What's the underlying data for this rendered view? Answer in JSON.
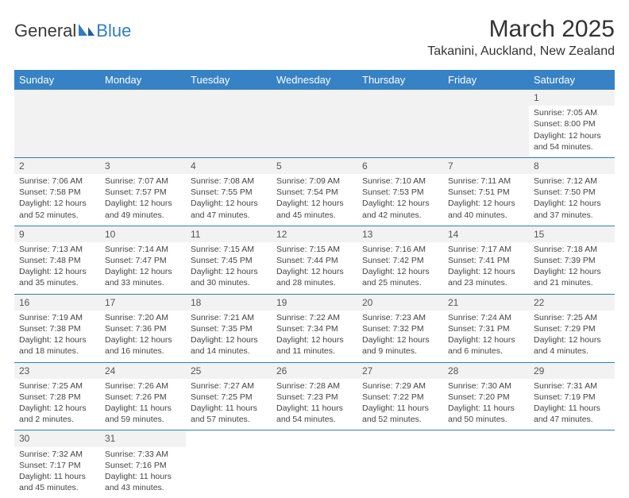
{
  "brand": {
    "part1": "General",
    "part2": "Blue"
  },
  "title": "March 2025",
  "location": "Takanini, Auckland, New Zealand",
  "colors": {
    "header_bg": "#3782c4",
    "header_text": "#ffffff",
    "rule": "#2f7ec0",
    "daystrip_bg": "#f2f2f2",
    "brand_blue": "#2f7ec0",
    "text": "#333333"
  },
  "weekdays": [
    "Sunday",
    "Monday",
    "Tuesday",
    "Wednesday",
    "Thursday",
    "Friday",
    "Saturday"
  ],
  "leading_blanks": 6,
  "days": [
    {
      "n": "1",
      "sunrise": "Sunrise: 7:05 AM",
      "sunset": "Sunset: 8:00 PM",
      "day1": "Daylight: 12 hours",
      "day2": "and 54 minutes."
    },
    {
      "n": "2",
      "sunrise": "Sunrise: 7:06 AM",
      "sunset": "Sunset: 7:58 PM",
      "day1": "Daylight: 12 hours",
      "day2": "and 52 minutes."
    },
    {
      "n": "3",
      "sunrise": "Sunrise: 7:07 AM",
      "sunset": "Sunset: 7:57 PM",
      "day1": "Daylight: 12 hours",
      "day2": "and 49 minutes."
    },
    {
      "n": "4",
      "sunrise": "Sunrise: 7:08 AM",
      "sunset": "Sunset: 7:55 PM",
      "day1": "Daylight: 12 hours",
      "day2": "and 47 minutes."
    },
    {
      "n": "5",
      "sunrise": "Sunrise: 7:09 AM",
      "sunset": "Sunset: 7:54 PM",
      "day1": "Daylight: 12 hours",
      "day2": "and 45 minutes."
    },
    {
      "n": "6",
      "sunrise": "Sunrise: 7:10 AM",
      "sunset": "Sunset: 7:53 PM",
      "day1": "Daylight: 12 hours",
      "day2": "and 42 minutes."
    },
    {
      "n": "7",
      "sunrise": "Sunrise: 7:11 AM",
      "sunset": "Sunset: 7:51 PM",
      "day1": "Daylight: 12 hours",
      "day2": "and 40 minutes."
    },
    {
      "n": "8",
      "sunrise": "Sunrise: 7:12 AM",
      "sunset": "Sunset: 7:50 PM",
      "day1": "Daylight: 12 hours",
      "day2": "and 37 minutes."
    },
    {
      "n": "9",
      "sunrise": "Sunrise: 7:13 AM",
      "sunset": "Sunset: 7:48 PM",
      "day1": "Daylight: 12 hours",
      "day2": "and 35 minutes."
    },
    {
      "n": "10",
      "sunrise": "Sunrise: 7:14 AM",
      "sunset": "Sunset: 7:47 PM",
      "day1": "Daylight: 12 hours",
      "day2": "and 33 minutes."
    },
    {
      "n": "11",
      "sunrise": "Sunrise: 7:15 AM",
      "sunset": "Sunset: 7:45 PM",
      "day1": "Daylight: 12 hours",
      "day2": "and 30 minutes."
    },
    {
      "n": "12",
      "sunrise": "Sunrise: 7:15 AM",
      "sunset": "Sunset: 7:44 PM",
      "day1": "Daylight: 12 hours",
      "day2": "and 28 minutes."
    },
    {
      "n": "13",
      "sunrise": "Sunrise: 7:16 AM",
      "sunset": "Sunset: 7:42 PM",
      "day1": "Daylight: 12 hours",
      "day2": "and 25 minutes."
    },
    {
      "n": "14",
      "sunrise": "Sunrise: 7:17 AM",
      "sunset": "Sunset: 7:41 PM",
      "day1": "Daylight: 12 hours",
      "day2": "and 23 minutes."
    },
    {
      "n": "15",
      "sunrise": "Sunrise: 7:18 AM",
      "sunset": "Sunset: 7:39 PM",
      "day1": "Daylight: 12 hours",
      "day2": "and 21 minutes."
    },
    {
      "n": "16",
      "sunrise": "Sunrise: 7:19 AM",
      "sunset": "Sunset: 7:38 PM",
      "day1": "Daylight: 12 hours",
      "day2": "and 18 minutes."
    },
    {
      "n": "17",
      "sunrise": "Sunrise: 7:20 AM",
      "sunset": "Sunset: 7:36 PM",
      "day1": "Daylight: 12 hours",
      "day2": "and 16 minutes."
    },
    {
      "n": "18",
      "sunrise": "Sunrise: 7:21 AM",
      "sunset": "Sunset: 7:35 PM",
      "day1": "Daylight: 12 hours",
      "day2": "and 14 minutes."
    },
    {
      "n": "19",
      "sunrise": "Sunrise: 7:22 AM",
      "sunset": "Sunset: 7:34 PM",
      "day1": "Daylight: 12 hours",
      "day2": "and 11 minutes."
    },
    {
      "n": "20",
      "sunrise": "Sunrise: 7:23 AM",
      "sunset": "Sunset: 7:32 PM",
      "day1": "Daylight: 12 hours",
      "day2": "and 9 minutes."
    },
    {
      "n": "21",
      "sunrise": "Sunrise: 7:24 AM",
      "sunset": "Sunset: 7:31 PM",
      "day1": "Daylight: 12 hours",
      "day2": "and 6 minutes."
    },
    {
      "n": "22",
      "sunrise": "Sunrise: 7:25 AM",
      "sunset": "Sunset: 7:29 PM",
      "day1": "Daylight: 12 hours",
      "day2": "and 4 minutes."
    },
    {
      "n": "23",
      "sunrise": "Sunrise: 7:25 AM",
      "sunset": "Sunset: 7:28 PM",
      "day1": "Daylight: 12 hours",
      "day2": "and 2 minutes."
    },
    {
      "n": "24",
      "sunrise": "Sunrise: 7:26 AM",
      "sunset": "Sunset: 7:26 PM",
      "day1": "Daylight: 11 hours",
      "day2": "and 59 minutes."
    },
    {
      "n": "25",
      "sunrise": "Sunrise: 7:27 AM",
      "sunset": "Sunset: 7:25 PM",
      "day1": "Daylight: 11 hours",
      "day2": "and 57 minutes."
    },
    {
      "n": "26",
      "sunrise": "Sunrise: 7:28 AM",
      "sunset": "Sunset: 7:23 PM",
      "day1": "Daylight: 11 hours",
      "day2": "and 54 minutes."
    },
    {
      "n": "27",
      "sunrise": "Sunrise: 7:29 AM",
      "sunset": "Sunset: 7:22 PM",
      "day1": "Daylight: 11 hours",
      "day2": "and 52 minutes."
    },
    {
      "n": "28",
      "sunrise": "Sunrise: 7:30 AM",
      "sunset": "Sunset: 7:20 PM",
      "day1": "Daylight: 11 hours",
      "day2": "and 50 minutes."
    },
    {
      "n": "29",
      "sunrise": "Sunrise: 7:31 AM",
      "sunset": "Sunset: 7:19 PM",
      "day1": "Daylight: 11 hours",
      "day2": "and 47 minutes."
    },
    {
      "n": "30",
      "sunrise": "Sunrise: 7:32 AM",
      "sunset": "Sunset: 7:17 PM",
      "day1": "Daylight: 11 hours",
      "day2": "and 45 minutes."
    },
    {
      "n": "31",
      "sunrise": "Sunrise: 7:33 AM",
      "sunset": "Sunset: 7:16 PM",
      "day1": "Daylight: 11 hours",
      "day2": "and 43 minutes."
    }
  ]
}
